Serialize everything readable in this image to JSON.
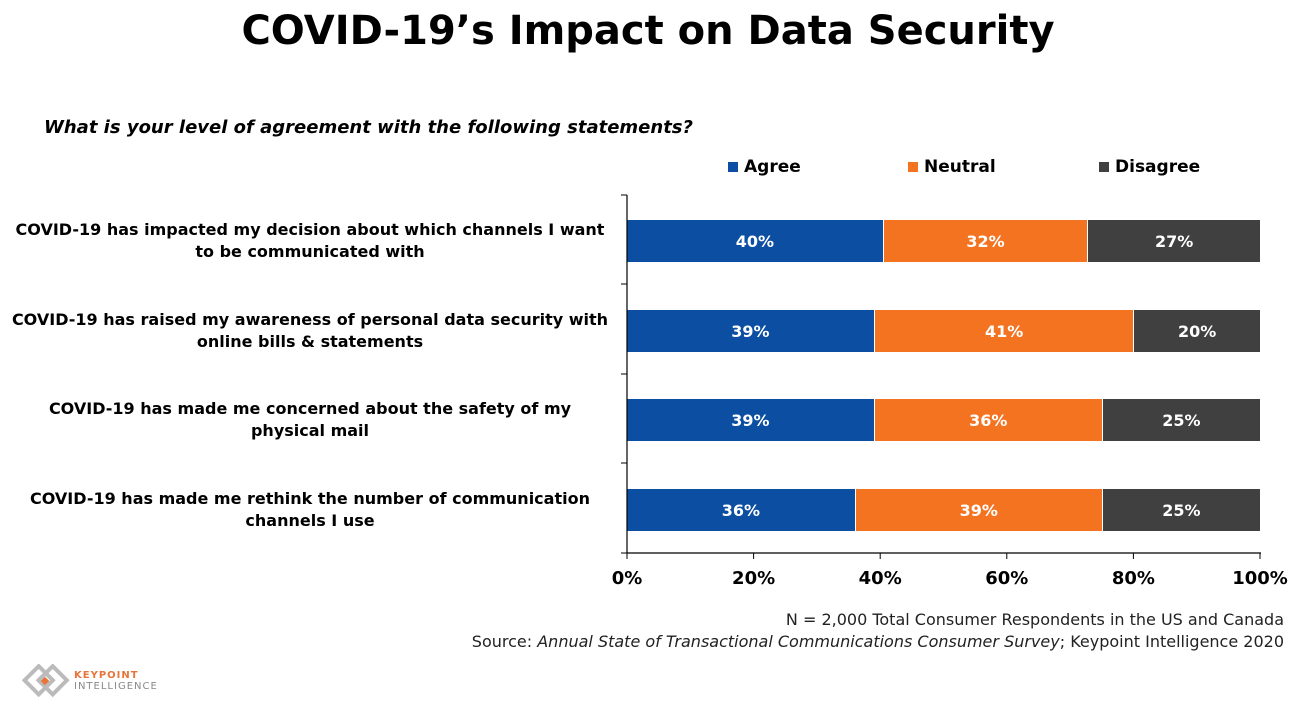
{
  "title": "COVID-19’s Impact on Data Security",
  "subtitle": "What is your level of agreement with the following statements?",
  "chart_data": {
    "type": "bar",
    "orientation": "horizontal",
    "stacked": true,
    "categories": [
      "COVID-19 has impacted my decision about which channels I want to be communicated with",
      "COVID-19 has raised my awareness of personal data security with online bills & statements",
      "COVID-19 has made me concerned about the safety of my physical mail",
      "COVID-19 has made me rethink the number of communication channels I use"
    ],
    "series": [
      {
        "name": "Agree",
        "color": "#0B4EA2",
        "values": [
          40,
          39,
          39,
          36
        ],
        "labels": [
          "40%",
          "39%",
          "39%",
          "36%"
        ]
      },
      {
        "name": "Neutral",
        "color": "#F47321",
        "values": [
          32,
          41,
          36,
          39
        ],
        "labels": [
          "32%",
          "41%",
          "36%",
          "39%"
        ]
      },
      {
        "name": "Disagree",
        "color": "#404040",
        "values": [
          27,
          20,
          25,
          25
        ],
        "labels": [
          "27%",
          "20%",
          "25%",
          "25%"
        ]
      }
    ],
    "xlim": [
      0,
      100
    ],
    "xticks": [
      "0%",
      "20%",
      "40%",
      "60%",
      "80%",
      "100%"
    ],
    "legend": "top",
    "grid": false
  },
  "notes": {
    "n": "N = 2,000 Total Consumer Respondents in the US and Canada",
    "source_prefix": "Source: ",
    "source_title": "Annual State of Transactional Communications Consumer Survey",
    "source_suffix": "; Keypoint Intelligence 2020"
  },
  "logo": {
    "line1": "KEYPOINT",
    "line2": "INTELLIGENCE",
    "accent": "#E8743B"
  }
}
